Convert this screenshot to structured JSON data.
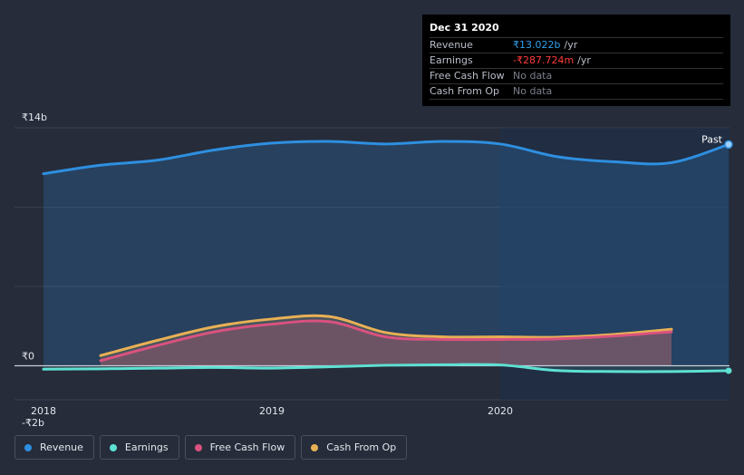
{
  "tooltip": {
    "date": "Dec 31 2020",
    "rows": [
      {
        "name": "Revenue",
        "value": "₹13.022b",
        "unit": "/yr"
      },
      {
        "name": "Earnings",
        "value": "-₹287.724m",
        "unit": "/yr"
      },
      {
        "name": "Free Cash Flow",
        "value": "No data",
        "unit": ""
      },
      {
        "name": "Cash From Op",
        "value": "No data",
        "unit": ""
      }
    ]
  },
  "legend": [
    {
      "label": "Revenue",
      "color": "#2e8fe0"
    },
    {
      "label": "Earnings",
      "color": "#5ee0d2"
    },
    {
      "label": "Free Cash Flow",
      "color": "#d9527f"
    },
    {
      "label": "Cash From Op",
      "color": "#e8b055"
    }
  ],
  "chart_data": {
    "type": "area",
    "title": "",
    "xlabel": "",
    "ylabel": "",
    "x_range": [
      2018.0,
      2021.0
    ],
    "ylim": [
      -2,
      14
    ],
    "y_ticks": [
      {
        "value": 14,
        "label": "₹14b"
      },
      {
        "value": 0,
        "label": "₹0"
      },
      {
        "value": -2,
        "label": "-₹2b"
      }
    ],
    "x_ticks": [
      {
        "value": 2018.0,
        "label": "2018"
      },
      {
        "value": 2019.0,
        "label": "2019"
      },
      {
        "value": 2020.0,
        "label": "2020"
      }
    ],
    "past_start": 2020.0,
    "past_label": "Past",
    "series": [
      {
        "name": "Revenue",
        "color": "#2e8fe0",
        "x": [
          2018.0,
          2018.25,
          2018.5,
          2018.75,
          2019.0,
          2019.25,
          2019.5,
          2019.75,
          2020.0,
          2020.25,
          2020.5,
          2020.75,
          2021.0
        ],
        "values": [
          11.3,
          11.8,
          12.1,
          12.7,
          13.1,
          13.2,
          13.05,
          13.2,
          13.05,
          12.3,
          12.0,
          11.95,
          13.022
        ]
      },
      {
        "name": "Earnings",
        "color": "#5ee0d2",
        "x": [
          2018.0,
          2018.25,
          2018.5,
          2018.75,
          2019.0,
          2019.25,
          2019.5,
          2019.75,
          2020.0,
          2020.25,
          2020.5,
          2020.75,
          2021.0
        ],
        "values": [
          -0.2,
          -0.18,
          -0.14,
          -0.1,
          -0.14,
          -0.06,
          0.03,
          0.06,
          0.05,
          -0.28,
          -0.34,
          -0.34,
          -0.29
        ]
      },
      {
        "name": "Free Cash Flow",
        "color": "#d9527f",
        "x": [
          2018.25,
          2018.5,
          2018.75,
          2019.0,
          2019.25,
          2019.5,
          2019.75,
          2020.0,
          2020.25,
          2020.5,
          2020.75
        ],
        "values": [
          0.3,
          1.2,
          2.0,
          2.45,
          2.6,
          1.7,
          1.55,
          1.55,
          1.58,
          1.75,
          2.0
        ]
      },
      {
        "name": "Cash From Op",
        "color": "#e8b055",
        "x": [
          2018.25,
          2018.5,
          2018.75,
          2019.0,
          2019.25,
          2019.5,
          2019.75,
          2020.0,
          2020.25,
          2020.5,
          2020.75
        ],
        "values": [
          0.6,
          1.5,
          2.3,
          2.75,
          2.9,
          1.95,
          1.7,
          1.7,
          1.68,
          1.85,
          2.15
        ]
      }
    ]
  }
}
